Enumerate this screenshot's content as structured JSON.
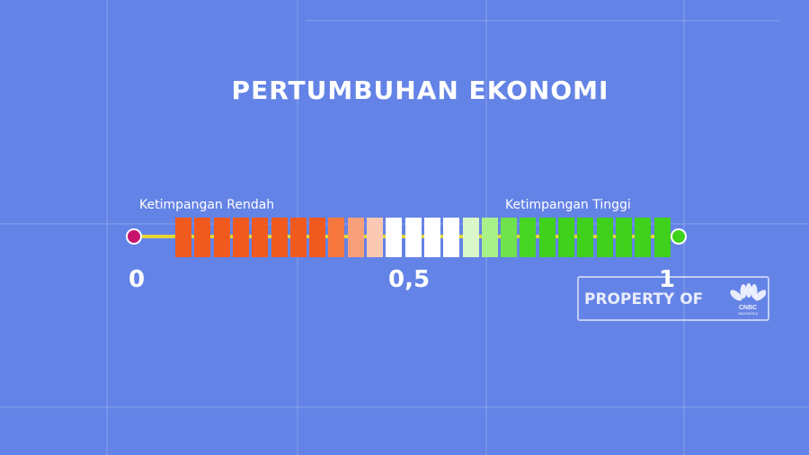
{
  "title": "PERTUMBUHAN EKONOMI",
  "scale": {
    "label_low": "Ketimpangan Rendah",
    "label_high": "Ketimpangan Tinggi",
    "tick_min": "0",
    "tick_mid": "0,5",
    "tick_max": "1",
    "segments": [
      "#f05a1e",
      "#f05a1e",
      "#f05a1e",
      "#f05a1e",
      "#f05a1e",
      "#f05a1e",
      "#f05a1e",
      "#f05a1e",
      "#f5773e",
      "#f8a07a",
      "#fbc9b2",
      "#ffffff",
      "#ffffff",
      "#ffffff",
      "#ffffff",
      "#d9f7c8",
      "#a8f08a",
      "#6fe24c",
      "#47d624",
      "#3fd11c",
      "#3fd11c",
      "#3fd11c",
      "#3fd11c",
      "#3fd11c",
      "#3fd11c",
      "#3fd11c"
    ],
    "color_low_end": "#c8146e",
    "color_high_end": "#3fd11c",
    "color_line": "#e3d63a"
  },
  "watermark": {
    "text": "PROPERTY OF",
    "logo_text": "CNBC INDONESIA"
  }
}
